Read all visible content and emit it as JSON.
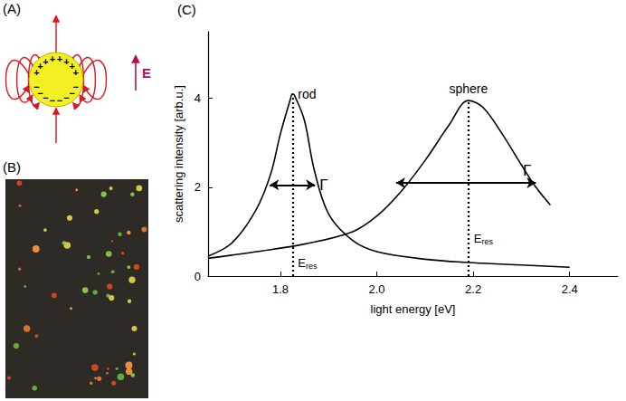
{
  "chart_data": {
    "type": "line",
    "panel": "(C)",
    "x_label": "light energy [eV]",
    "y_label": "scattering intensity [arb.u.]",
    "xlim": [
      1.65,
      2.5
    ],
    "ylim": [
      0,
      5.5
    ],
    "xticks": [
      1.8,
      {
        "value": 2,
        "label": "2.0"
      },
      2.2,
      2.4
    ],
    "yticks": [
      0,
      2,
      4
    ],
    "grid": false,
    "resonance_label": {
      "text": "E",
      "subscript": "res"
    },
    "width_label": "Γ",
    "series": [
      {
        "name": "rod",
        "color": "#000000",
        "line_style": "solid",
        "marker": "none",
        "x": [
          1.65,
          1.7,
          1.75,
          1.78,
          1.8,
          1.82,
          1.825,
          1.83,
          1.85,
          1.87,
          1.9,
          1.95,
          2.0,
          2.1,
          2.2,
          2.3,
          2.4
        ],
        "values": [
          0.45,
          0.75,
          1.5,
          2.3,
          3.2,
          3.95,
          4.1,
          4.05,
          3.5,
          2.4,
          1.4,
          0.8,
          0.55,
          0.38,
          0.3,
          0.25,
          0.2
        ],
        "e_res": 1.825,
        "fwhm": [
          1.778,
          1.872
        ],
        "fwhm_at": 2.05
      },
      {
        "name": "sphere",
        "color": "#000000",
        "line_style": "solid",
        "marker": "none",
        "x": [
          1.65,
          1.75,
          1.85,
          1.95,
          2.0,
          2.05,
          2.1,
          2.15,
          2.19,
          2.22,
          2.26,
          2.3,
          2.33,
          2.36
        ],
        "values": [
          0.4,
          0.55,
          0.72,
          1.0,
          1.35,
          1.9,
          2.6,
          3.4,
          3.95,
          3.8,
          3.2,
          2.5,
          2.0,
          1.6
        ],
        "e_res": 2.19,
        "fwhm": [
          2.04,
          2.33
        ],
        "fwhm_at": 2.1
      }
    ]
  },
  "diagram": {
    "panel": "(A)",
    "field_label": "E",
    "charges": {
      "positive": "+",
      "negative": "−"
    }
  },
  "image": {
    "panel": "(B)"
  }
}
